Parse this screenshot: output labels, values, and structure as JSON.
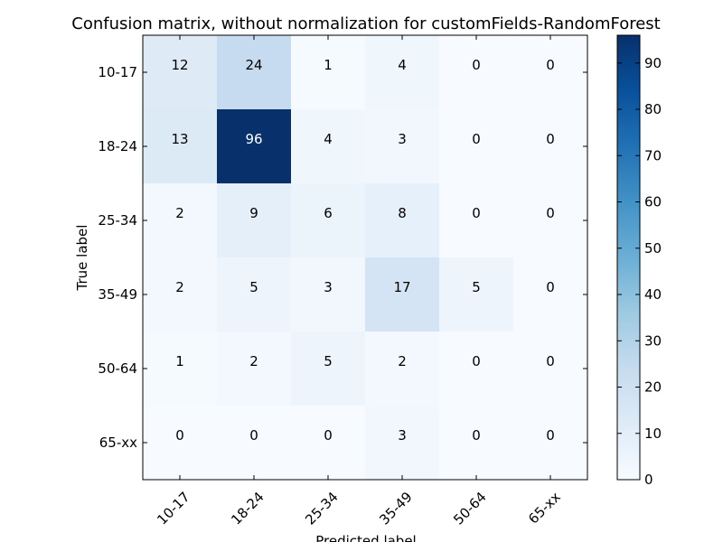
{
  "chart_data": {
    "type": "heatmap",
    "title": "Confusion matrix, without normalization for customFields-RandomForest",
    "xlabel": "Predicted label",
    "ylabel": "True label",
    "x_categories": [
      "10-17",
      "18-24",
      "25-34",
      "35-49",
      "50-64",
      "65-xx"
    ],
    "y_categories": [
      "10-17",
      "18-24",
      "25-34",
      "35-49",
      "50-64",
      "65-xx"
    ],
    "values": [
      [
        12,
        24,
        1,
        4,
        0,
        0
      ],
      [
        13,
        96,
        4,
        3,
        0,
        0
      ],
      [
        2,
        9,
        6,
        8,
        0,
        0
      ],
      [
        2,
        5,
        3,
        17,
        5,
        0
      ],
      [
        1,
        2,
        5,
        2,
        0,
        0
      ],
      [
        0,
        0,
        0,
        3,
        0,
        0
      ]
    ],
    "colorbar": {
      "min": 0,
      "max": 96,
      "ticks": [
        0,
        10,
        20,
        30,
        40,
        50,
        60,
        70,
        80,
        90
      ],
      "colormap": "Blues"
    }
  }
}
